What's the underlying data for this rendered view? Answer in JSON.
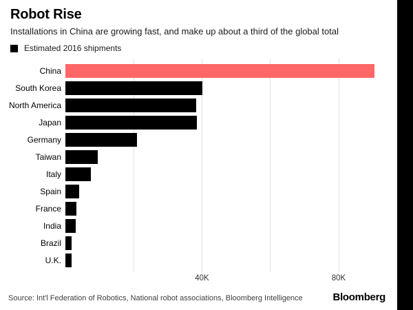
{
  "header": {
    "title": "Robot Rise",
    "subtitle": "Installations in China are growing fast, and make up about a third of the global total"
  },
  "legend": {
    "label": "Estimated 2016 shipments",
    "swatch_color": "#000000"
  },
  "chart_data": {
    "type": "bar",
    "orientation": "horizontal",
    "title": "Robot Rise",
    "subtitle": "Installations in China are growing fast, and make up about a third of the global total",
    "legend_entries": [
      "Estimated 2016 shipments"
    ],
    "legend_position": "top-left",
    "unit": "thousands of shipments",
    "categories": [
      "China",
      "South Korea",
      "North America",
      "Japan",
      "Germany",
      "Taiwan",
      "Italy",
      "Spain",
      "France",
      "India",
      "Brazil",
      "U.K."
    ],
    "values": [
      90.5,
      40.2,
      38.2,
      38.4,
      21.0,
      9.5,
      7.5,
      4.0,
      3.2,
      3.0,
      1.8,
      1.8
    ],
    "highlight_index": 0,
    "colors": {
      "highlight_bar": "#FF6666",
      "default_bar": "#000000",
      "gridline": "#e0e0e0"
    },
    "xlabel": "",
    "ylabel": "",
    "xlim": [
      0,
      97
    ],
    "grid": "vertical",
    "ticks": [
      {
        "value": 20,
        "label": ""
      },
      {
        "value": 40,
        "label": "40K"
      },
      {
        "value": 60,
        "label": ""
      },
      {
        "value": 80,
        "label": "80K"
      }
    ]
  },
  "footer": {
    "source": "Source: Int'l Federation of Robotics, National robot associations, Bloomberg Intelligence",
    "brand": "Bloomberg"
  }
}
